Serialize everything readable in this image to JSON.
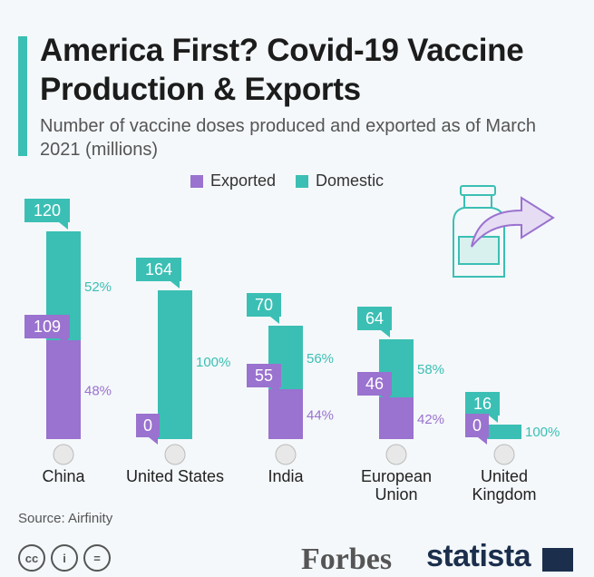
{
  "title": "America First? Covid-19 Vaccine Production & Exports",
  "subtitle": "Number of vaccine doses produced and exported as of March 2021 (millions)",
  "source": "Source: Airfinity",
  "logos": {
    "forbes": "Forbes",
    "statista": "statista"
  },
  "cc_icons": [
    "cc",
    "i",
    "="
  ],
  "colors": {
    "exported": "#9a72cf",
    "domestic": "#3bbfb4",
    "accent": "#3bbfb4"
  },
  "chart_data": {
    "type": "bar",
    "stacked": true,
    "title": "America First? Covid-19 Vaccine Production & Exports",
    "subtitle": "Number of vaccine doses produced and exported as of March 2021 (millions)",
    "legend": [
      "Exported",
      "Domestic"
    ],
    "legend_position": "top",
    "categories": [
      {
        "name": "China",
        "label_lines": [
          "China"
        ],
        "flag": "china-flag-icon"
      },
      {
        "name": "United States",
        "label_lines": [
          "United States"
        ],
        "flag": "us-flag-icon"
      },
      {
        "name": "India",
        "label_lines": [
          "India"
        ],
        "flag": "india-flag-icon"
      },
      {
        "name": "European Union",
        "label_lines": [
          "European",
          "Union"
        ],
        "flag": "eu-flag-icon"
      },
      {
        "name": "United Kingdom",
        "label_lines": [
          "United",
          "Kingdom"
        ],
        "flag": "uk-flag-icon"
      }
    ],
    "series": [
      {
        "name": "Exported",
        "values": [
          109,
          0,
          55,
          46,
          0
        ],
        "percent_labels": [
          "48%",
          "",
          "44%",
          "42%",
          ""
        ]
      },
      {
        "name": "Domestic",
        "values": [
          120,
          164,
          70,
          64,
          16
        ],
        "percent_labels": [
          "52%",
          "100%",
          "56%",
          "58%",
          "100%"
        ]
      }
    ],
    "unit": "millions"
  }
}
